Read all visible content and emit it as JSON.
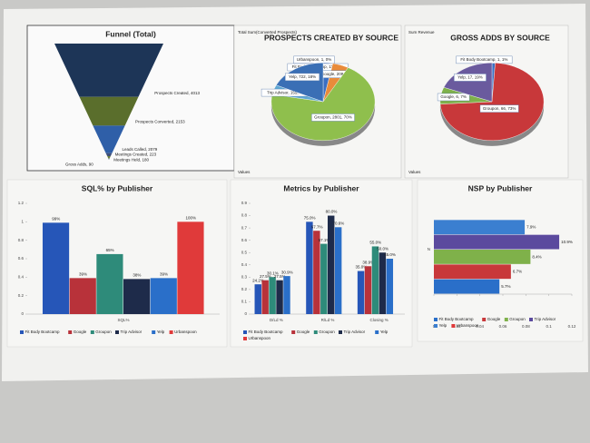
{
  "chart_data": [
    {
      "type": "funnel",
      "title": "Funnel (Total)",
      "values": [
        4013,
        2153,
        2079,
        223,
        180,
        90
      ],
      "value_labels": [
        "Prospects Created, 4013",
        "Prospects Converted, 2153",
        "Leads Called, 2079",
        "Meetings Created, 223",
        "Meetings Held, 180",
        "Gross Adds, 90"
      ],
      "colors": [
        "#1d3557",
        "#5a6e2c",
        "#2f5fa8",
        "#3d4f7a",
        "#6b7f3a",
        "#2a4a8a"
      ]
    },
    {
      "type": "pie",
      "title": "PROSPECTS CREATED BY SOURCE",
      "subtitle": "Total Sum(Converted Prospects)",
      "axis_label": "Values",
      "categories": [
        "Urbanspoon",
        "Fit Body Bootcamp",
        "Google",
        "Groupon",
        "Trip Advisor",
        "Yelp"
      ],
      "values": [
        0,
        3,
        5,
        70,
        4,
        18
      ],
      "value_labels": [
        "Urbanspoon, 1, 0%",
        "Fit Body Bootcamp, 112, 3%",
        "Google, 209, 5%",
        "Groupon, 2801, 70%",
        "Trip Advisor, 155, 4%",
        "Yelp, 722, 18%"
      ],
      "colors": [
        "#7b5ea7",
        "#3b6fc2",
        "#e98b3a",
        "#8fbf4d",
        "#5fa8d3",
        "#3a6fb5"
      ]
    },
    {
      "type": "pie",
      "title": "GROSS ADDS BY SOURCE",
      "subtitle": "Sum Revenue",
      "axis_label": "Values",
      "categories": [
        "Fit Body Bootcamp",
        "Groupon",
        "Google",
        "Yelp"
      ],
      "values": [
        1,
        73,
        7,
        19
      ],
      "value_labels": [
        "Fit Body Bootcamp, 1, 1%",
        "Groupon, 66, 73%",
        "Google, 6, 7%",
        "Yelp, 17, 19%"
      ],
      "colors": [
        "#3b6fc2",
        "#c8383a",
        "#7fb14a",
        "#6a5a9e"
      ]
    },
    {
      "type": "bar",
      "title": "SQL% by Publisher",
      "categories": [
        "SQL%"
      ],
      "ylim": [
        0,
        1.2
      ],
      "yticks": [
        0,
        0.2,
        0.4,
        0.6,
        0.8,
        1,
        1.2
      ],
      "series": [
        {
          "name": "Fit Body Bootcamp",
          "color": "#2656b8",
          "values": [
            0.99
          ],
          "value_labels": [
            "99%"
          ]
        },
        {
          "name": "Google",
          "color": "#b8323a",
          "values": [
            0.39
          ],
          "value_labels": [
            "39%"
          ]
        },
        {
          "name": "Groupon",
          "color": "#2e8b7a",
          "values": [
            0.65
          ],
          "value_labels": [
            "65%"
          ]
        },
        {
          "name": "Trip Advisor",
          "color": "#1e2b4a",
          "values": [
            0.38
          ],
          "value_labels": [
            "38%"
          ]
        },
        {
          "name": "Yelp",
          "color": "#2a6fc9",
          "values": [
            0.39
          ],
          "value_labels": [
            "39%"
          ]
        },
        {
          "name": "Urbanspoon",
          "color": "#e03a3a",
          "values": [
            1
          ],
          "value_labels": [
            "100%"
          ]
        }
      ]
    },
    {
      "type": "bar",
      "title": "Metrics by Publisher",
      "categories": [
        "D/Ld %",
        "R/Ld %",
        "Closing %"
      ],
      "ylim": [
        0,
        0.9
      ],
      "yticks": [
        0,
        0.1,
        0.2,
        0.3,
        0.4,
        0.5,
        0.6,
        0.7,
        0.8,
        0.9
      ],
      "series": [
        {
          "name": "Fit Body Bootcamp",
          "color": "#2656b8",
          "values": [
            0.242,
            0.75,
            0.35
          ],
          "value_labels": [
            "24.2%",
            "75.0%",
            "35.0%"
          ]
        },
        {
          "name": "Google",
          "color": "#b8323a",
          "values": [
            0.275,
            0.677,
            0.389
          ],
          "value_labels": [
            "27.5%",
            "67.7%",
            "38.9%"
          ]
        },
        {
          "name": "Groupon",
          "color": "#2e8b7a",
          "values": [
            0.301,
            0.571,
            0.55
          ],
          "value_labels": [
            "30.1%",
            "57.1%",
            "55.0%"
          ]
        },
        {
          "name": "Trip Advisor",
          "color": "#1e2b4a",
          "values": [
            0.275,
            0.8,
            0.5
          ],
          "value_labels": [
            "27.5%",
            "80.0%",
            "50.0%"
          ]
        },
        {
          "name": "Yelp",
          "color": "#2a6fc9",
          "values": [
            0.309,
            0.706,
            0.45
          ],
          "value_labels": [
            "30.9%",
            "70.6%",
            "45.0%"
          ]
        },
        {
          "name": "Urbanspoon",
          "color": "#e03a3a",
          "values": [
            null,
            null,
            null
          ]
        }
      ]
    },
    {
      "type": "bar",
      "orientation": "horizontal",
      "title": "NSP by Publisher",
      "categories": [
        "N"
      ],
      "xlim": [
        0,
        0.12
      ],
      "xticks": [
        0,
        0.02,
        0.04,
        0.06,
        0.08,
        0.1,
        0.12
      ],
      "series": [
        {
          "name": "Fit Body Bootcamp",
          "color": "#2a6fc9",
          "values": [
            0.057
          ],
          "value_labels": [
            "5.7%"
          ]
        },
        {
          "name": "Google",
          "color": "#c8383a",
          "values": [
            0.067
          ],
          "value_labels": [
            "6.7%"
          ]
        },
        {
          "name": "Groupon",
          "color": "#7fb14a",
          "values": [
            0.084
          ],
          "value_labels": [
            "8.4%"
          ]
        },
        {
          "name": "Trip Advisor",
          "color": "#5b4a9e",
          "values": [
            0.109
          ],
          "value_labels": [
            "10.9%"
          ]
        },
        {
          "name": "Yelp",
          "color": "#3b7fd0",
          "values": [
            0.079
          ],
          "value_labels": [
            "7.9%"
          ]
        },
        {
          "name": "Urbanspoon",
          "color": "#e03a3a",
          "values": [
            null
          ]
        }
      ]
    }
  ]
}
